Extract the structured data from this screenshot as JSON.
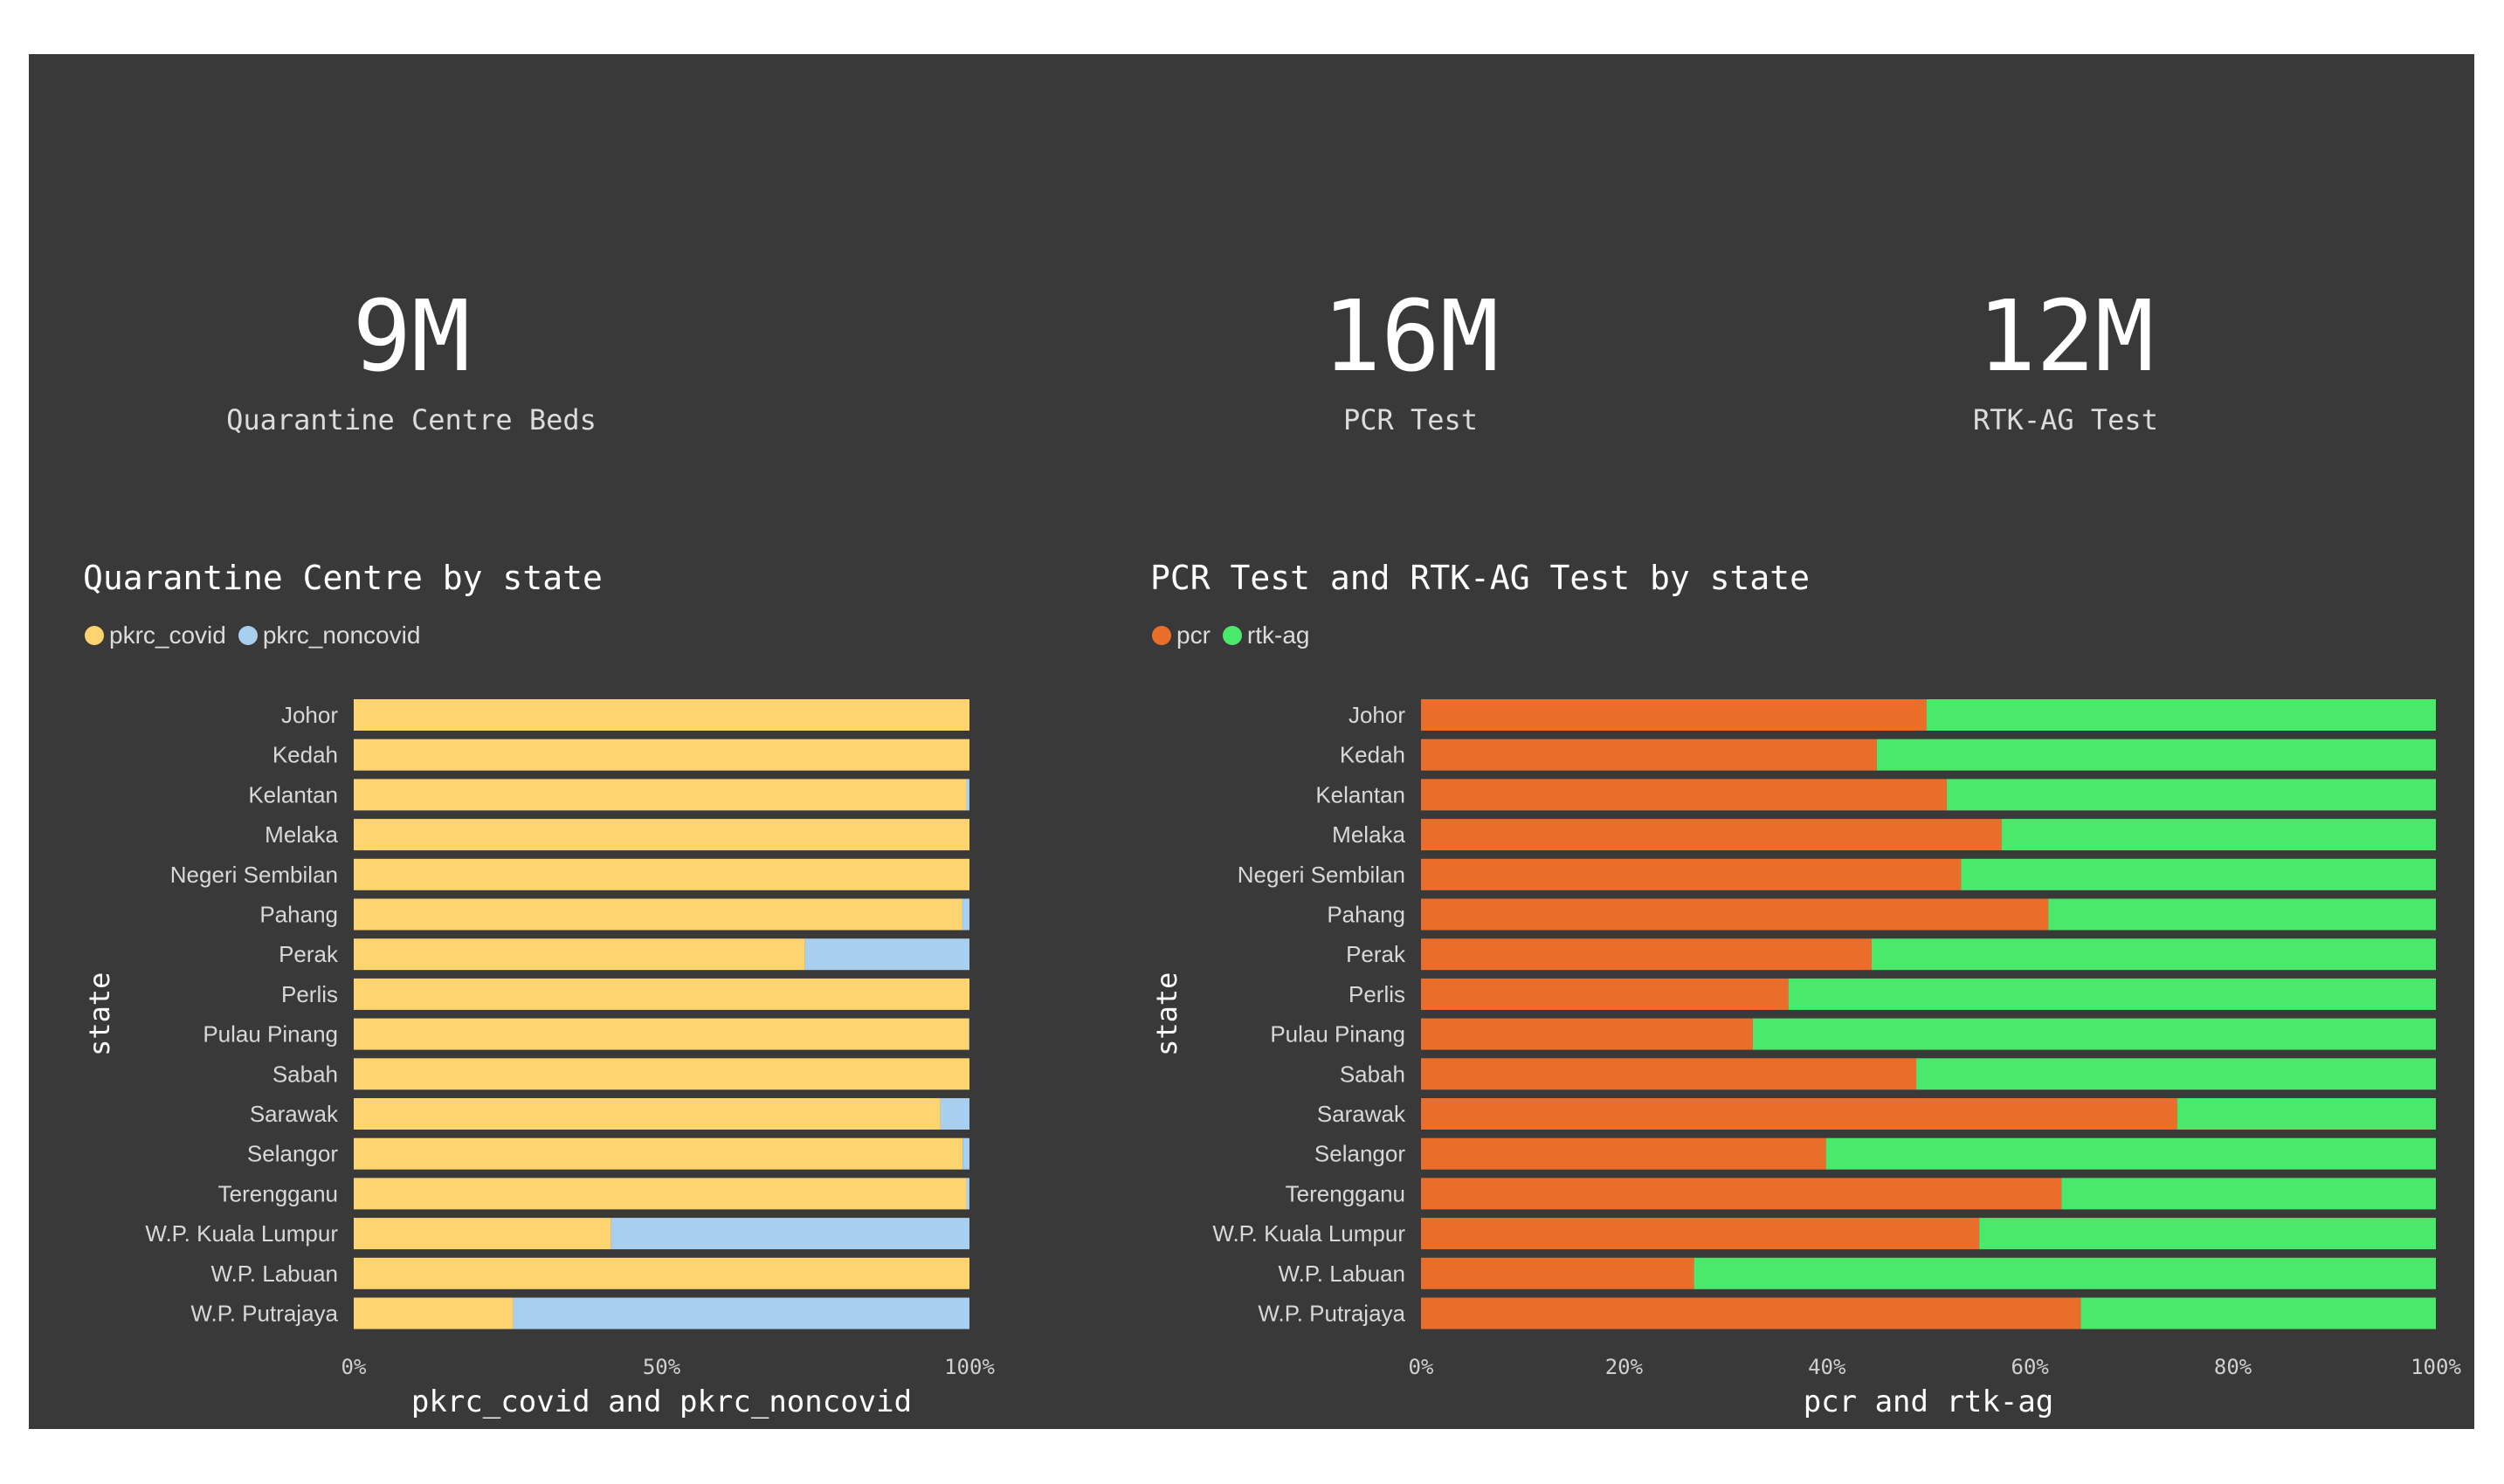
{
  "kpis": [
    {
      "value": "9M",
      "label": "Quarantine Centre Beds"
    },
    {
      "value": "16M",
      "label": "PCR Test"
    },
    {
      "value": "12M",
      "label": "RTK-AG Test"
    }
  ],
  "colors": {
    "background": "#393939",
    "pkrc_covid": "#fdd470",
    "pkrc_noncovid": "#a9cfee",
    "pcr": "#ea6e2a",
    "rtk_ag": "#4ae96c"
  },
  "chart_data": [
    {
      "type": "bar",
      "orientation": "horizontal",
      "stacking": "percent",
      "title": "Quarantine Centre by state",
      "xlabel": "pkrc_covid and pkrc_noncovid",
      "ylabel": "state",
      "xticks": [
        "0%",
        "50%",
        "100%"
      ],
      "xlim": [
        0,
        100
      ],
      "legend_position": "top-left",
      "categories": [
        "Johor",
        "Kedah",
        "Kelantan",
        "Melaka",
        "Negeri Sembilan",
        "Pahang",
        "Perak",
        "Perlis",
        "Pulau Pinang",
        "Sabah",
        "Sarawak",
        "Selangor",
        "Terengganu",
        "W.P. Kuala Lumpur",
        "W.P. Labuan",
        "W.P. Putrajaya"
      ],
      "series": [
        {
          "name": "pkrc_covid",
          "values": [
            100,
            100,
            99.5,
            100,
            100,
            98.8,
            73.3,
            100,
            99.9,
            100,
            95.3,
            98.9,
            99.5,
            41.8,
            100,
            25.9
          ]
        },
        {
          "name": "pkrc_noncovid",
          "values": [
            0,
            0,
            0.5,
            0,
            0,
            1.2,
            26.7,
            0,
            0.1,
            0,
            4.7,
            1.1,
            0.5,
            58.2,
            0,
            74.1
          ]
        }
      ]
    },
    {
      "type": "bar",
      "orientation": "horizontal",
      "stacking": "percent",
      "title": "PCR Test and RTK-AG Test by state",
      "xlabel": "pcr and rtk-ag",
      "ylabel": "state",
      "xticks": [
        "0%",
        "20%",
        "40%",
        "60%",
        "80%",
        "100%"
      ],
      "xlim": [
        0,
        100
      ],
      "legend_position": "top-left",
      "categories": [
        "Johor",
        "Kedah",
        "Kelantan",
        "Melaka",
        "Negeri Sembilan",
        "Pahang",
        "Perak",
        "Perlis",
        "Pulau Pinang",
        "Sabah",
        "Sarawak",
        "Selangor",
        "Terengganu",
        "W.P. Kuala Lumpur",
        "W.P. Labuan",
        "W.P. Putrajaya"
      ],
      "series": [
        {
          "name": "pcr",
          "values": [
            49.8,
            44.9,
            51.8,
            57.2,
            53.2,
            61.8,
            44.4,
            36.2,
            32.7,
            48.8,
            74.5,
            39.9,
            63.1,
            55.0,
            26.9,
            65.0
          ]
        },
        {
          "name": "rtk-ag",
          "values": [
            50.2,
            55.1,
            48.2,
            42.8,
            46.8,
            38.2,
            55.6,
            63.8,
            67.3,
            51.2,
            25.5,
            60.1,
            36.9,
            45.0,
            73.1,
            35.0
          ]
        }
      ]
    }
  ]
}
